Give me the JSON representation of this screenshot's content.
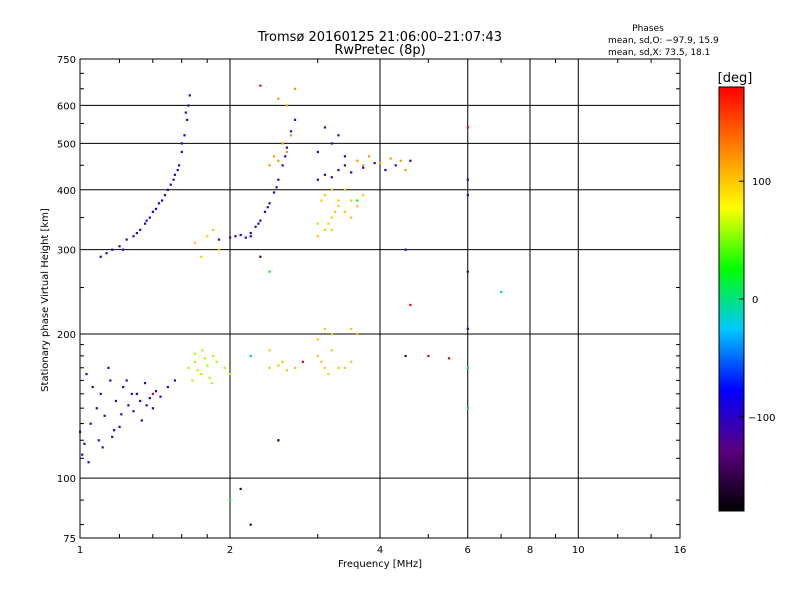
{
  "header": {
    "title_line1": "Tromsø 20160125 21:06:00–21:07:43",
    "title_line2": "RwPretec (8p)"
  },
  "phase_stats": {
    "heading": "Phases",
    "line_o": "mean, sd,O: −97.9, 15.9",
    "line_x": "mean, sd,X:  73.5, 18.1"
  },
  "colorbar": {
    "unit_label": "[deg]",
    "tick_labels": [
      "100",
      "0",
      "−100"
    ],
    "tick_values": [
      100,
      0,
      -100
    ],
    "range": [
      -180,
      180
    ],
    "stops": [
      "#000000",
      "#5a0080",
      "#0000ff",
      "#00c8ff",
      "#00ff00",
      "#ffff00",
      "#ff8000",
      "#ff0000"
    ]
  },
  "chart_data": {
    "type": "scatter",
    "xlabel": "Frequency [MHz]",
    "ylabel": "Stationary phase Virtual Height [km]",
    "x_scale": "log",
    "y_scale": "log",
    "xlim": [
      1,
      16
    ],
    "ylim": [
      75,
      750
    ],
    "x_ticks": [
      1,
      2,
      4,
      6,
      8,
      10,
      16
    ],
    "x_tick_labels": [
      "1",
      "2",
      "4",
      "6",
      "8",
      "10",
      "16"
    ],
    "y_ticks": [
      75,
      100,
      200,
      300,
      400,
      500,
      600,
      750
    ],
    "y_tick_labels": [
      "75",
      "100",
      "200",
      "300",
      "400",
      "500",
      "600",
      "750"
    ],
    "grid": true,
    "point_clusters": [
      {
        "phase": -100,
        "points": [
          [
            1.0,
            125
          ],
          [
            1.02,
            118
          ],
          [
            1.05,
            130
          ],
          [
            1.08,
            140
          ],
          [
            1.1,
            150
          ],
          [
            1.12,
            135
          ],
          [
            1.15,
            160
          ],
          [
            1.18,
            145
          ],
          [
            1.2,
            128
          ],
          [
            1.22,
            155
          ],
          [
            1.25,
            142
          ],
          [
            1.28,
            138
          ],
          [
            1.3,
            150
          ],
          [
            1.33,
            132
          ],
          [
            1.35,
            158
          ],
          [
            1.38,
            147
          ],
          [
            1.4,
            140
          ],
          [
            1.03,
            165
          ],
          [
            1.06,
            155
          ],
          [
            1.09,
            120
          ],
          [
            1.14,
            170
          ],
          [
            1.17,
            126
          ],
          [
            1.24,
            160
          ],
          [
            1.32,
            145
          ],
          [
            1.42,
            152
          ],
          [
            1.01,
            112
          ],
          [
            1.04,
            108
          ],
          [
            1.11,
            116
          ],
          [
            1.16,
            122
          ],
          [
            1.21,
            136
          ],
          [
            1.27,
            150
          ],
          [
            1.36,
            142
          ],
          [
            1.45,
            148
          ],
          [
            1.5,
            155
          ],
          [
            1.55,
            160
          ]
        ]
      },
      {
        "phase": -100,
        "points": [
          [
            1.1,
            290
          ],
          [
            1.13,
            295
          ],
          [
            1.16,
            300
          ],
          [
            1.2,
            305
          ],
          [
            1.24,
            315
          ],
          [
            1.28,
            320
          ],
          [
            1.32,
            330
          ],
          [
            1.36,
            345
          ],
          [
            1.4,
            360
          ],
          [
            1.44,
            375
          ],
          [
            1.48,
            390
          ],
          [
            1.52,
            410
          ],
          [
            1.55,
            430
          ],
          [
            1.58,
            450
          ],
          [
            1.6,
            480
          ],
          [
            1.62,
            520
          ],
          [
            1.64,
            560
          ],
          [
            1.65,
            600
          ],
          [
            1.66,
            630
          ],
          [
            1.22,
            300
          ],
          [
            1.3,
            325
          ],
          [
            1.38,
            350
          ],
          [
            1.46,
            380
          ],
          [
            1.54,
            420
          ],
          [
            1.6,
            500
          ],
          [
            1.35,
            340
          ],
          [
            1.42,
            365
          ],
          [
            1.5,
            400
          ],
          [
            1.57,
            440
          ],
          [
            1.63,
            580
          ]
        ]
      },
      {
        "phase": -100,
        "points": [
          [
            1.9,
            315
          ],
          [
            2.0,
            318
          ],
          [
            2.05,
            320
          ],
          [
            2.1,
            322
          ],
          [
            2.15,
            318
          ],
          [
            2.2,
            325
          ],
          [
            2.25,
            335
          ],
          [
            2.3,
            345
          ],
          [
            2.35,
            360
          ],
          [
            2.4,
            375
          ],
          [
            2.45,
            395
          ],
          [
            2.5,
            420
          ],
          [
            2.55,
            450
          ],
          [
            2.6,
            490
          ],
          [
            2.65,
            530
          ],
          [
            2.7,
            560
          ],
          [
            2.2,
            320
          ],
          [
            2.28,
            340
          ],
          [
            2.38,
            368
          ],
          [
            2.48,
            405
          ],
          [
            2.58,
            470
          ]
        ]
      },
      {
        "phase": -100,
        "points": [
          [
            3.0,
            420
          ],
          [
            3.1,
            430
          ],
          [
            3.2,
            425
          ],
          [
            3.3,
            440
          ],
          [
            3.4,
            450
          ],
          [
            3.5,
            435
          ],
          [
            3.0,
            480
          ],
          [
            3.2,
            500
          ],
          [
            3.4,
            470
          ],
          [
            3.7,
            445
          ],
          [
            3.9,
            455
          ],
          [
            4.1,
            440
          ],
          [
            4.3,
            450
          ],
          [
            4.6,
            460
          ],
          [
            3.1,
            540
          ],
          [
            3.3,
            520
          ],
          [
            4.5,
            300
          ],
          [
            6.0,
            390
          ],
          [
            6.0,
            420
          ],
          [
            6.0,
            270
          ],
          [
            6.0,
            205
          ]
        ]
      },
      {
        "phase": 60,
        "points": [
          [
            1.65,
            170
          ],
          [
            1.7,
            175
          ],
          [
            1.75,
            165
          ],
          [
            1.8,
            172
          ],
          [
            1.85,
            180
          ],
          [
            1.68,
            160
          ],
          [
            1.72,
            168
          ],
          [
            1.78,
            178
          ],
          [
            1.82,
            162
          ],
          [
            1.88,
            175
          ],
          [
            1.95,
            170
          ],
          [
            2.0,
            165
          ],
          [
            1.76,
            185
          ],
          [
            1.84,
            158
          ],
          [
            1.7,
            182
          ]
        ]
      },
      {
        "phase": 100,
        "points": [
          [
            2.4,
            170
          ],
          [
            2.5,
            172
          ],
          [
            2.6,
            168
          ],
          [
            2.7,
            170
          ],
          [
            2.55,
            175
          ],
          [
            3.0,
            180
          ],
          [
            3.05,
            175
          ],
          [
            3.1,
            170
          ],
          [
            3.15,
            165
          ],
          [
            3.2,
            185
          ],
          [
            3.0,
            195
          ],
          [
            3.1,
            205
          ],
          [
            3.2,
            200
          ],
          [
            3.4,
            170
          ],
          [
            3.5,
            175
          ],
          [
            3.6,
            200
          ],
          [
            3.5,
            205
          ],
          [
            2.4,
            185
          ],
          [
            3.3,
            170
          ]
        ]
      },
      {
        "phase": 100,
        "points": [
          [
            3.0,
            320
          ],
          [
            3.1,
            330
          ],
          [
            3.15,
            340
          ],
          [
            3.2,
            350
          ],
          [
            3.25,
            360
          ],
          [
            3.3,
            370
          ],
          [
            3.05,
            380
          ],
          [
            3.1,
            390
          ],
          [
            3.2,
            400
          ],
          [
            3.3,
            380
          ],
          [
            3.4,
            360
          ],
          [
            3.5,
            350
          ],
          [
            3.6,
            370
          ],
          [
            3.7,
            390
          ],
          [
            3.0,
            340
          ],
          [
            3.2,
            330
          ],
          [
            3.4,
            400
          ],
          [
            3.5,
            380
          ],
          [
            1.7,
            310
          ],
          [
            1.8,
            320
          ],
          [
            1.9,
            300
          ],
          [
            1.75,
            290
          ],
          [
            1.85,
            330
          ]
        ]
      },
      {
        "phase": 120,
        "points": [
          [
            2.4,
            450
          ],
          [
            2.5,
            460
          ],
          [
            2.6,
            480
          ],
          [
            2.55,
            500
          ],
          [
            2.65,
            520
          ],
          [
            2.45,
            470
          ],
          [
            2.6,
            600
          ],
          [
            2.7,
            650
          ],
          [
            2.5,
            620
          ],
          [
            3.6,
            460
          ],
          [
            3.8,
            470
          ],
          [
            4.0,
            455
          ],
          [
            4.2,
            465
          ],
          [
            3.7,
            450
          ],
          [
            4.4,
            460
          ],
          [
            4.5,
            440
          ]
        ]
      },
      {
        "phase": 180,
        "points": [
          [
            1.4,
            150
          ],
          [
            2.8,
            175
          ],
          [
            5.5,
            178
          ],
          [
            6.0,
            540
          ],
          [
            5.0,
            180
          ],
          [
            4.6,
            230
          ],
          [
            2.3,
            660
          ]
        ]
      },
      {
        "phase": -20,
        "points": [
          [
            6.0,
            170
          ],
          [
            6.0,
            140
          ],
          [
            7.0,
            245
          ],
          [
            2.2,
            180
          ],
          [
            2.5,
            120
          ]
        ]
      },
      {
        "phase": 20,
        "points": [
          [
            2.0,
            90
          ],
          [
            2.4,
            270
          ],
          [
            3.6,
            380
          ]
        ]
      },
      {
        "phase": -150,
        "points": [
          [
            2.1,
            95
          ],
          [
            2.2,
            80
          ],
          [
            2.3,
            290
          ],
          [
            4.5,
            180
          ],
          [
            2.5,
            120
          ]
        ]
      }
    ]
  }
}
